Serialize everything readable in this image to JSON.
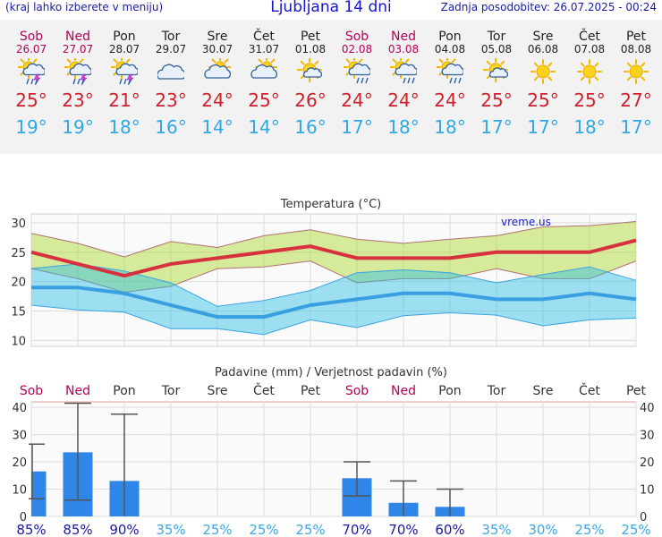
{
  "header": {
    "menu_note": "(kraj lahko izberete v meniju)",
    "title": "Ljubljana 14 dni",
    "updated": "Zadnja posodobitev: 26.07.2025 - 00:24"
  },
  "days": [
    {
      "name": "Sob",
      "date": "26.07",
      "weekend": true,
      "icon": "sun-cloud-rain-thunder-icon",
      "max": "25°",
      "min": "19°"
    },
    {
      "name": "Ned",
      "date": "27.07",
      "weekend": true,
      "icon": "sun-cloud-rain-thunder-icon",
      "max": "23°",
      "min": "19°"
    },
    {
      "name": "Pon",
      "date": "28.07",
      "weekend": false,
      "icon": "sun-cloud-rain-thunder-icon",
      "max": "21°",
      "min": "18°"
    },
    {
      "name": "Tor",
      "date": "29.07",
      "weekend": false,
      "icon": "cloud-icon",
      "max": "23°",
      "min": "16°"
    },
    {
      "name": "Sre",
      "date": "30.07",
      "weekend": false,
      "icon": "sun-cloud-icon",
      "max": "24°",
      "min": "14°"
    },
    {
      "name": "Čet",
      "date": "31.07",
      "weekend": false,
      "icon": "sun-cloud-icon",
      "max": "25°",
      "min": "14°"
    },
    {
      "name": "Pet",
      "date": "01.08",
      "weekend": false,
      "icon": "sun-small-cloud-icon",
      "max": "26°",
      "min": "16°"
    },
    {
      "name": "Sob",
      "date": "02.08",
      "weekend": true,
      "icon": "sun-cloud-rain-icon",
      "max": "24°",
      "min": "17°"
    },
    {
      "name": "Ned",
      "date": "03.08",
      "weekend": true,
      "icon": "sun-cloud-rain-icon",
      "max": "24°",
      "min": "18°"
    },
    {
      "name": "Pon",
      "date": "04.08",
      "weekend": false,
      "icon": "sun-cloud-rain-icon",
      "max": "24°",
      "min": "18°"
    },
    {
      "name": "Tor",
      "date": "05.08",
      "weekend": false,
      "icon": "sun-small-cloud-icon",
      "max": "25°",
      "min": "17°"
    },
    {
      "name": "Sre",
      "date": "06.08",
      "weekend": false,
      "icon": "sun-icon",
      "max": "25°",
      "min": "17°"
    },
    {
      "name": "Čet",
      "date": "07.08",
      "weekend": false,
      "icon": "sun-icon",
      "max": "25°",
      "min": "18°"
    },
    {
      "name": "Pet",
      "date": "08.08",
      "weekend": false,
      "icon": "sun-icon",
      "max": "27°",
      "min": "17°"
    }
  ],
  "chart_data": [
    {
      "type": "line",
      "title": "Temperatura (°C)",
      "watermark": "vreme.us",
      "x_index": [
        0,
        1,
        2,
        3,
        4,
        5,
        6,
        7,
        8,
        9,
        10,
        11,
        12,
        13
      ],
      "ylim": [
        9,
        31.5
      ],
      "y_ticks": [
        "10",
        "15",
        "20",
        "25",
        "30"
      ],
      "series": [
        {
          "name": "max",
          "values": [
            25,
            23,
            21,
            23,
            24,
            25,
            26,
            24,
            24,
            24,
            25,
            25,
            25,
            27
          ],
          "color": "#d8313e"
        },
        {
          "name": "max_upper",
          "values": [
            28.2,
            26.5,
            24.2,
            26.8,
            25.8,
            27.8,
            28.8,
            27.2,
            26.5,
            27.2,
            27.8,
            29.3,
            29.5,
            30.2
          ]
        },
        {
          "name": "max_lower",
          "values": [
            22.2,
            20.5,
            18.2,
            19.2,
            22.2,
            22.5,
            23.5,
            19.8,
            20.5,
            20.5,
            22.2,
            20.5,
            20.5,
            23.5
          ]
        },
        {
          "name": "min",
          "values": [
            19,
            19,
            18,
            16,
            14,
            14,
            16,
            17,
            18,
            18,
            17,
            17,
            18,
            17
          ],
          "color": "#3a9fe0"
        },
        {
          "name": "min_upper",
          "values": [
            22.2,
            23,
            21.8,
            19.8,
            15.8,
            16.8,
            18.5,
            21.5,
            22,
            21.5,
            19.8,
            21.2,
            22.5,
            20.2
          ]
        },
        {
          "name": "min_lower",
          "values": [
            16,
            15.2,
            14.8,
            12,
            12,
            11,
            13.5,
            12.2,
            14.2,
            14.7,
            14.3,
            12.5,
            13.5,
            13.8
          ]
        }
      ]
    },
    {
      "type": "bar",
      "title": "Padavine (mm) / Verjetnost padavin (%)",
      "categories": [
        "Sob",
        "Ned",
        "Pon",
        "Tor",
        "Sre",
        "Čet",
        "Pet",
        "Sob",
        "Ned",
        "Pon",
        "Tor",
        "Sre",
        "Čet",
        "Pet"
      ],
      "weekend": [
        true,
        true,
        false,
        false,
        false,
        false,
        false,
        true,
        true,
        false,
        false,
        false,
        false,
        false
      ],
      "ylim": [
        0,
        42
      ],
      "y_ticks": [
        "0",
        "10",
        "20",
        "30",
        "40"
      ],
      "values": [
        16.5,
        23.5,
        13,
        0,
        0,
        0,
        0,
        14,
        5,
        3.5,
        0,
        0,
        0,
        0
      ],
      "error_high": [
        26.5,
        41.5,
        37.5,
        null,
        null,
        null,
        null,
        20,
        13,
        10,
        null,
        null,
        null,
        null
      ],
      "error_low": [
        6.5,
        6,
        0,
        null,
        null,
        null,
        null,
        7.5,
        0,
        0,
        null,
        null,
        null,
        null
      ],
      "probability": [
        "85%",
        "85%",
        "90%",
        "35%",
        "25%",
        "25%",
        "25%",
        "70%",
        "70%",
        "60%",
        "35%",
        "30%",
        "25%",
        "25%"
      ],
      "probability_high": [
        true,
        true,
        true,
        false,
        false,
        false,
        false,
        true,
        true,
        true,
        false,
        false,
        false,
        false
      ],
      "colors": {
        "bar": "#2f86e8",
        "prob_high": "#1a1aa6",
        "prob_low": "#3ea6e6",
        "weekend": "#b5005a"
      }
    }
  ]
}
